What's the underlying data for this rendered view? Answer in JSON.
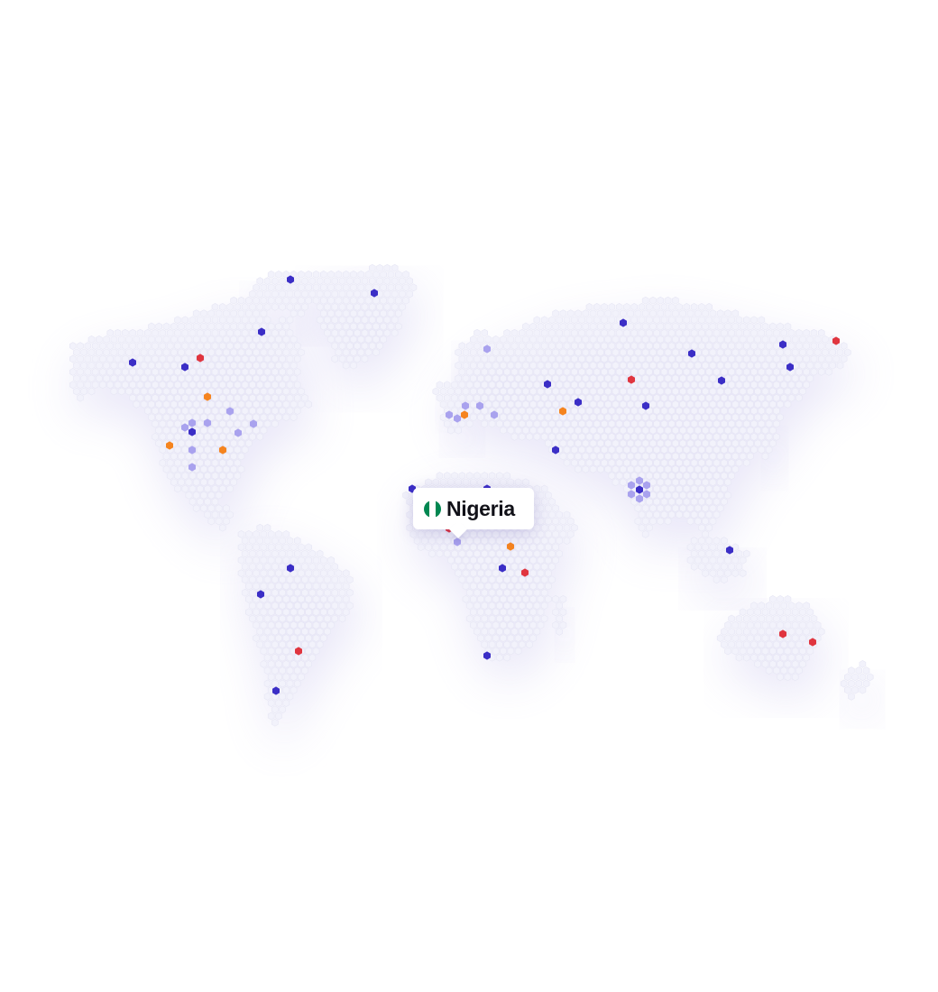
{
  "tooltip": {
    "country": "Nigeria",
    "flag": {
      "icon": "nigeria-flag-icon",
      "colors": [
        "#008751",
        "#ffffff",
        "#008751"
      ]
    }
  },
  "colors": {
    "land_hex": "#f2f2fb",
    "land_stroke": "#e6e6f4",
    "marker_dark": "#3b2ec6",
    "marker_light": "#a9a2ee",
    "marker_orange": "#f5841f",
    "marker_red": "#e0353f"
  },
  "markers": [
    {
      "type": "dark",
      "region": "north-america"
    },
    {
      "type": "red",
      "region": "north-america"
    },
    {
      "type": "orange",
      "region": "north-america"
    },
    {
      "type": "light",
      "region": "north-america"
    },
    {
      "type": "dark",
      "region": "greenland"
    },
    {
      "type": "dark",
      "region": "south-america"
    },
    {
      "type": "red",
      "region": "south-america"
    },
    {
      "type": "light",
      "region": "europe"
    },
    {
      "type": "orange",
      "region": "europe"
    },
    {
      "type": "dark",
      "region": "africa"
    },
    {
      "type": "red",
      "region": "africa"
    },
    {
      "type": "orange",
      "region": "africa"
    },
    {
      "type": "dark",
      "region": "asia"
    },
    {
      "type": "red",
      "region": "asia"
    },
    {
      "type": "light",
      "region": "asia"
    },
    {
      "type": "dark",
      "region": "oceania"
    },
    {
      "type": "red",
      "region": "oceania"
    }
  ]
}
